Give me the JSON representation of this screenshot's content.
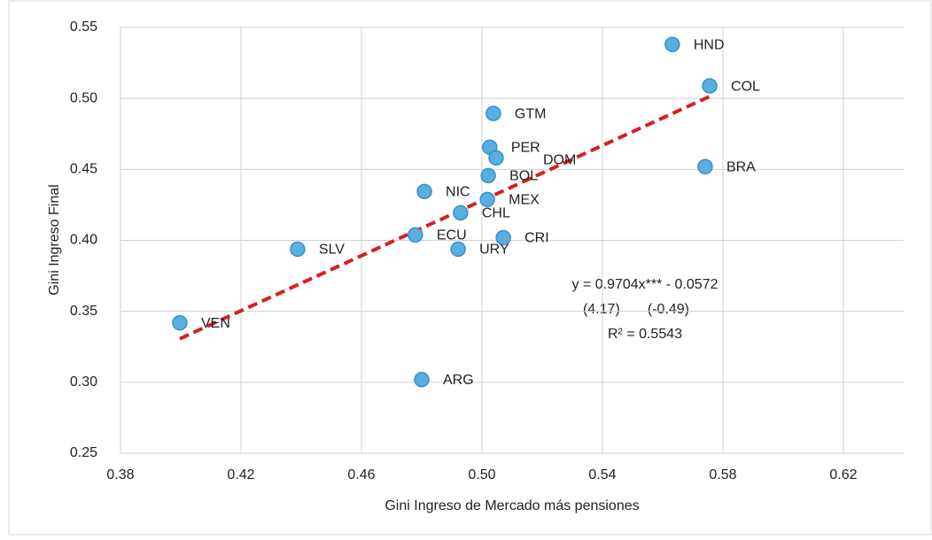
{
  "chart_data": {
    "type": "scatter",
    "x_label": "Gini Ingreso de Mercado más pensiones",
    "y_label": "Gini Ingreso Final",
    "labels": [
      "HND",
      "COL",
      "GTM",
      "PER",
      "DOM",
      "BRA",
      "BOL",
      "NIC",
      "MEX",
      "CHL",
      "ECU",
      "CRI",
      "SLV",
      "URY",
      "VEN",
      "ARG"
    ],
    "x": [
      0.5632,
      0.5756,
      0.5038,
      0.5026,
      0.5047,
      0.5741,
      0.5021,
      0.4809,
      0.5018,
      0.4929,
      0.4779,
      0.5071,
      0.4388,
      0.4921,
      0.3997,
      0.48
    ],
    "y": [
      0.538,
      0.5088,
      0.4894,
      0.4656,
      0.4581,
      0.4519,
      0.4456,
      0.4344,
      0.4288,
      0.4194,
      0.4038,
      0.4019,
      0.3938,
      0.3938,
      0.3419,
      0.3019
    ],
    "color": "#5aaee0",
    "xlim": [
      0.38,
      0.64
    ],
    "xticks": [
      0.38,
      0.42,
      0.46,
      {
        "value": 0.5,
        "label": "0.50"
      },
      0.54,
      0.58,
      0.62
    ],
    "ylim": [
      0.25,
      0.55
    ],
    "yticks": [
      0.25,
      {
        "value": 0.3,
        "label": "0.30"
      },
      0.35,
      {
        "value": 0.4,
        "label": "0.40"
      },
      0.45,
      {
        "value": 0.5,
        "label": "0.50"
      },
      0.55
    ],
    "grid": true,
    "trendline": {
      "slope": 0.9704,
      "intercept": -0.0572,
      "color": "#d62020"
    },
    "annotation": [
      "y = 0.9704x*** - 0.0572",
      "(4.17)       (-0.49)",
      "R² = 0.5543"
    ]
  }
}
